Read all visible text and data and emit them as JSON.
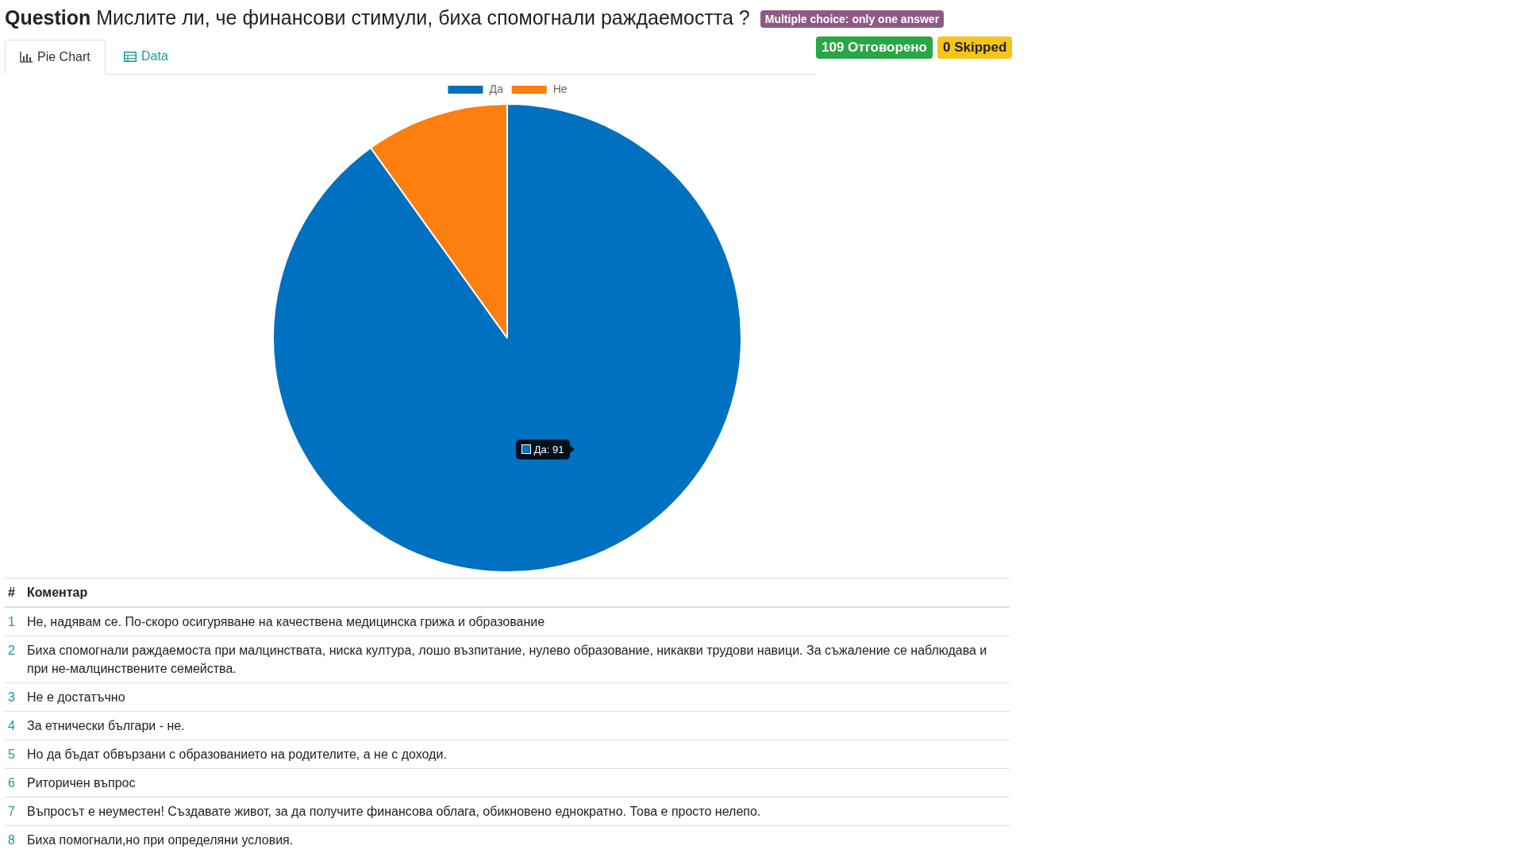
{
  "chart_data": {
    "type": "pie",
    "title": "Мислите ли, че финансови стимули, биха спомогнали раждаемостта ?",
    "categories": [
      "Да",
      "Не"
    ],
    "values": [
      91,
      10
    ],
    "colors": [
      "#0070c0",
      "#fd7f0f"
    ],
    "value_labels": [
      "Да: 91",
      null
    ],
    "legend": "top",
    "annotations": [
      "Question",
      "Multiple choice: only one answer",
      "109 Отговорено",
      "0 Skipped",
      "Pie Chart",
      "Data",
      "#",
      "Коментар",
      "1",
      "Не, надявам се. По-скоро осигуряване на качествена медицинска грижа и образование",
      "2",
      "Биха спомогнали раждаемоста при малцинствата, ниска култура, лошо възпитание, нулево образование, никакви трудови навици. За съжаление се наблюдава и при не-малцинствените семейства.",
      "3",
      "Не е достатъчно",
      "4",
      "За етнически българи - не.",
      "5",
      "Но да бъдат обвързани с образованието на родителите, а не с доходи.",
      "6",
      "Риторичен въпрос",
      "7",
      "Въпросът е неуместен! Създавате живот, за да получите финансова облага, обикновено еднократно. Това е просто нелепо.",
      "8",
      "Биха помогнали,но при определяни условия."
    ]
  }
}
